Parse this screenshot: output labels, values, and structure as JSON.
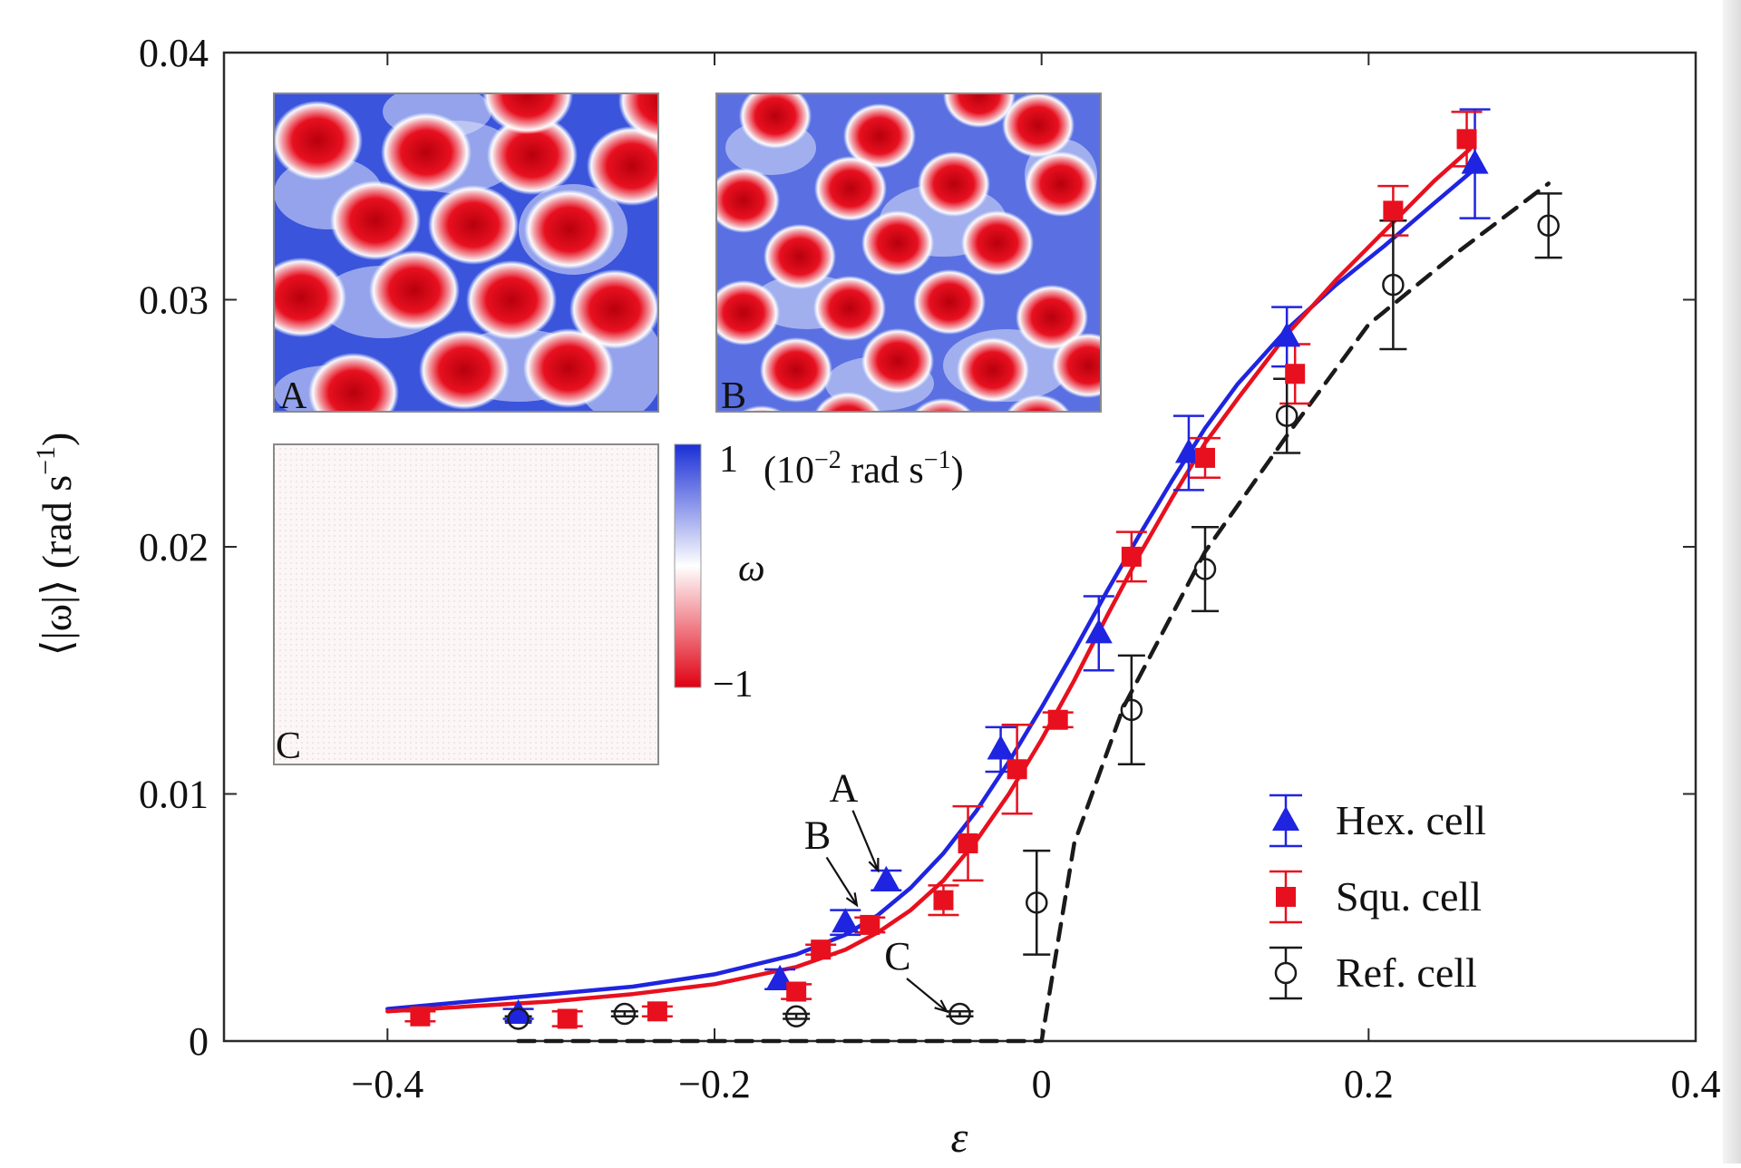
{
  "chart_data": {
    "type": "scatter",
    "title": "",
    "xlabel": "ε",
    "ylabel_parts": [
      "⟨|ω|⟩ (rad s",
      "−1",
      ")"
    ],
    "xlim": [
      -0.5,
      0.4
    ],
    "ylim": [
      0,
      0.04
    ],
    "x_ticks": [
      {
        "v": -0.4,
        "label": "−0.4"
      },
      {
        "v": -0.2,
        "label": "−0.2"
      },
      {
        "v": 0,
        "label": "0"
      },
      {
        "v": 0.2,
        "label": "0.2"
      },
      {
        "v": 0.4,
        "label": "0.4"
      }
    ],
    "y_ticks": [
      {
        "v": 0,
        "label": "0"
      },
      {
        "v": 0.01,
        "label": "0.01"
      },
      {
        "v": 0.02,
        "label": "0.02"
      },
      {
        "v": 0.03,
        "label": "0.03"
      },
      {
        "v": 0.04,
        "label": "0.04"
      }
    ],
    "grid": false,
    "legend_position": "bottom-right",
    "series": [
      {
        "name": "Hex. cell",
        "color": "#1f24e0",
        "marker": "triangle",
        "points": [
          {
            "x": -0.32,
            "y": 0.0011,
            "err": 0.0002
          },
          {
            "x": -0.16,
            "y": 0.0025,
            "err": 0.0004
          },
          {
            "x": -0.12,
            "y": 0.0048,
            "err": 0.0005
          },
          {
            "x": -0.095,
            "y": 0.0065,
            "err": 0.0004
          },
          {
            "x": -0.025,
            "y": 0.0118,
            "err": 0.0009
          },
          {
            "x": 0.035,
            "y": 0.0165,
            "err": 0.0015
          },
          {
            "x": 0.09,
            "y": 0.0238,
            "err": 0.0015
          },
          {
            "x": 0.15,
            "y": 0.0285,
            "err": 0.0012
          },
          {
            "x": 0.265,
            "y": 0.0355,
            "err": 0.0022
          }
        ],
        "fit": [
          [
            -0.4,
            0.0013
          ],
          [
            -0.35,
            0.0016
          ],
          [
            -0.3,
            0.0019
          ],
          [
            -0.25,
            0.0022
          ],
          [
            -0.2,
            0.0027
          ],
          [
            -0.15,
            0.0035
          ],
          [
            -0.12,
            0.0043
          ],
          [
            -0.1,
            0.0051
          ],
          [
            -0.08,
            0.0062
          ],
          [
            -0.06,
            0.0076
          ],
          [
            -0.04,
            0.0093
          ],
          [
            -0.02,
            0.0113
          ],
          [
            0,
            0.0135
          ],
          [
            0.02,
            0.0158
          ],
          [
            0.04,
            0.0182
          ],
          [
            0.06,
            0.0205
          ],
          [
            0.08,
            0.0227
          ],
          [
            0.1,
            0.0248
          ],
          [
            0.12,
            0.0266
          ],
          [
            0.15,
            0.0288
          ],
          [
            0.18,
            0.0306
          ],
          [
            0.21,
            0.0322
          ],
          [
            0.24,
            0.0339
          ],
          [
            0.265,
            0.0353
          ]
        ]
      },
      {
        "name": "Squ. cell",
        "color": "#e8101e",
        "marker": "square",
        "points": [
          {
            "x": -0.38,
            "y": 0.001,
            "err": 0.0002
          },
          {
            "x": -0.29,
            "y": 0.0009,
            "err": 0.0003
          },
          {
            "x": -0.235,
            "y": 0.0012,
            "err": 0.0002
          },
          {
            "x": -0.15,
            "y": 0.002,
            "err": 0.0003
          },
          {
            "x": -0.135,
            "y": 0.0037,
            "err": 0.0002
          },
          {
            "x": -0.105,
            "y": 0.0047,
            "err": 0.0003
          },
          {
            "x": -0.06,
            "y": 0.0057,
            "err": 0.0006
          },
          {
            "x": -0.045,
            "y": 0.008,
            "err": 0.0015
          },
          {
            "x": -0.015,
            "y": 0.011,
            "err": 0.0018
          },
          {
            "x": 0.01,
            "y": 0.013,
            "err": 0.0003
          },
          {
            "x": 0.055,
            "y": 0.0196,
            "err": 0.001
          },
          {
            "x": 0.1,
            "y": 0.0236,
            "err": 0.0008
          },
          {
            "x": 0.155,
            "y": 0.027,
            "err": 0.0012
          },
          {
            "x": 0.215,
            "y": 0.0336,
            "err": 0.001
          },
          {
            "x": 0.26,
            "y": 0.0365,
            "err": 0.0011
          }
        ],
        "fit": [
          [
            -0.4,
            0.0012
          ],
          [
            -0.35,
            0.0014
          ],
          [
            -0.3,
            0.0016
          ],
          [
            -0.25,
            0.0019
          ],
          [
            -0.2,
            0.0023
          ],
          [
            -0.15,
            0.003
          ],
          [
            -0.12,
            0.0037
          ],
          [
            -0.1,
            0.0044
          ],
          [
            -0.08,
            0.0053
          ],
          [
            -0.06,
            0.0065
          ],
          [
            -0.04,
            0.0081
          ],
          [
            -0.02,
            0.01
          ],
          [
            0,
            0.0122
          ],
          [
            0.02,
            0.0146
          ],
          [
            0.04,
            0.0172
          ],
          [
            0.06,
            0.0197
          ],
          [
            0.08,
            0.022
          ],
          [
            0.1,
            0.0242
          ],
          [
            0.12,
            0.026
          ],
          [
            0.15,
            0.0286
          ],
          [
            0.18,
            0.0308
          ],
          [
            0.21,
            0.0328
          ],
          [
            0.24,
            0.0348
          ],
          [
            0.262,
            0.0361
          ]
        ]
      },
      {
        "name": "Ref. cell",
        "color": "#1a1a1a",
        "marker": "circle-open",
        "points": [
          {
            "x": -0.32,
            "y": 0.0009,
            "err": 0.0001
          },
          {
            "x": -0.255,
            "y": 0.0011,
            "err": 0.0001
          },
          {
            "x": -0.15,
            "y": 0.001,
            "err": 0.0001
          },
          {
            "x": -0.05,
            "y": 0.0011,
            "err": 0.0001
          },
          {
            "x": -0.003,
            "y": 0.0056,
            "err": 0.0021
          },
          {
            "x": 0.055,
            "y": 0.0134,
            "err": 0.0022
          },
          {
            "x": 0.1,
            "y": 0.0191,
            "err": 0.0017
          },
          {
            "x": 0.15,
            "y": 0.0253,
            "err": 0.0015
          },
          {
            "x": 0.215,
            "y": 0.0306,
            "err": 0.0026
          },
          {
            "x": 0.31,
            "y": 0.033,
            "err": 0.0013
          }
        ],
        "fit": [
          [
            -0.32,
            0
          ],
          [
            0,
            0
          ],
          [
            0.005,
            0.002
          ],
          [
            0.02,
            0.008
          ],
          [
            0.05,
            0.0135
          ],
          [
            0.1,
            0.0198
          ],
          [
            0.15,
            0.0245
          ],
          [
            0.2,
            0.029
          ],
          [
            0.25,
            0.0317
          ],
          [
            0.31,
            0.0347
          ]
        ]
      }
    ],
    "annotations": [
      {
        "label": "A",
        "tx": -0.121,
        "ty": 0.0097,
        "ax": -0.1,
        "ay": 0.0069
      },
      {
        "label": "B",
        "tx": -0.137,
        "ty": 0.0078,
        "ax": -0.113,
        "ay": 0.0055
      },
      {
        "label": "C",
        "tx": -0.088,
        "ty": 0.0029,
        "ax": -0.058,
        "ay": 0.0012
      }
    ]
  },
  "insets": {
    "a_label": "A",
    "b_label": "B",
    "c_label": "C",
    "colorbar": {
      "max_label": "1",
      "min_label": "−1",
      "var_label": "ω",
      "units_parts": [
        "(10",
        "−2",
        " rad s",
        "−1",
        ")"
      ],
      "color_high": "#1a2fd6",
      "color_mid": "#ffffff",
      "color_low": "#e00012"
    }
  }
}
